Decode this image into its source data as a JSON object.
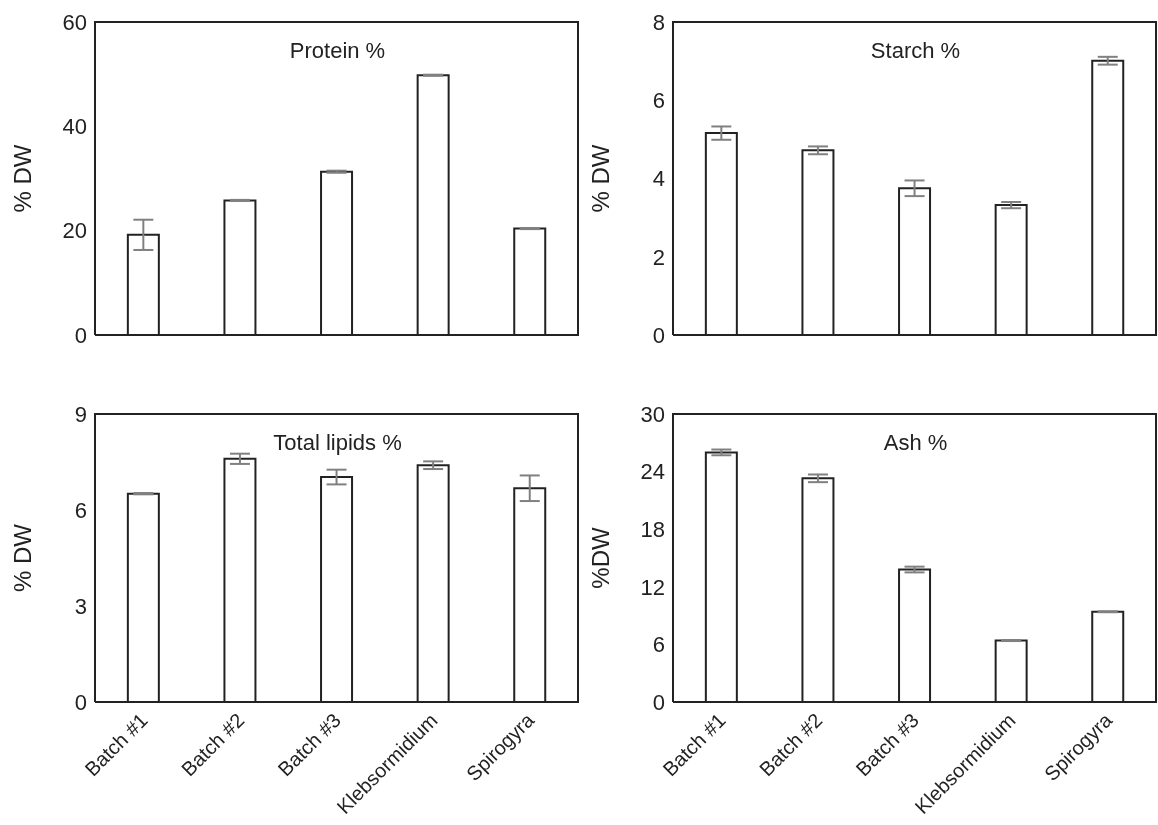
{
  "chart_data": [
    {
      "type": "bar",
      "title": "Protein %",
      "ylabel": "% DW",
      "categories": [
        null,
        null,
        null,
        null,
        null
      ],
      "values": [
        19.2,
        25.8,
        31.3,
        49.8,
        20.4
      ],
      "errors": [
        2.9,
        0.1,
        0.2,
        0.1,
        0.1
      ],
      "color": "#ffffff",
      "ylim": [
        0,
        60
      ],
      "yticks": [
        0,
        20,
        40,
        60
      ],
      "tick_labels": "y",
      "grid": false,
      "legend": false
    },
    {
      "type": "bar",
      "title": "Starch %",
      "ylabel": "% DW",
      "categories": [
        null,
        null,
        null,
        null,
        null
      ],
      "values": [
        5.16,
        4.72,
        3.75,
        3.32,
        7.01
      ],
      "errors": [
        0.17,
        0.1,
        0.2,
        0.08,
        0.1
      ],
      "color": "#ffffff",
      "ylim": [
        0,
        8
      ],
      "yticks": [
        0,
        2,
        4,
        6,
        8
      ],
      "tick_labels": "y",
      "grid": false,
      "legend": false
    },
    {
      "type": "bar",
      "title": "Total lipids %",
      "ylabel": "% DW",
      "categories": [
        "Batch #1",
        "Batch #2",
        "Batch #3",
        "Klebsormidium",
        "Spirogyra"
      ],
      "values": [
        6.51,
        7.6,
        7.03,
        7.4,
        6.68
      ],
      "errors": [
        0.02,
        0.16,
        0.23,
        0.12,
        0.4
      ],
      "color": "#ffffff",
      "ylim": [
        0,
        9
      ],
      "yticks": [
        0,
        3,
        6,
        9
      ],
      "grid": false,
      "legend": false
    },
    {
      "type": "bar",
      "title": "Ash %",
      "ylabel": "%DW",
      "categories": [
        "Batch #1",
        "Batch #2",
        "Batch #3",
        "Klebsormidium",
        "Spirogyra"
      ],
      "values": [
        26.0,
        23.3,
        13.8,
        6.4,
        9.4
      ],
      "errors": [
        0.3,
        0.4,
        0.3,
        0.05,
        0.05
      ],
      "color": "#ffffff",
      "ylim": [
        0,
        30
      ],
      "yticks": [
        0,
        6,
        12,
        18,
        24,
        30
      ],
      "grid": false,
      "legend": false
    }
  ]
}
